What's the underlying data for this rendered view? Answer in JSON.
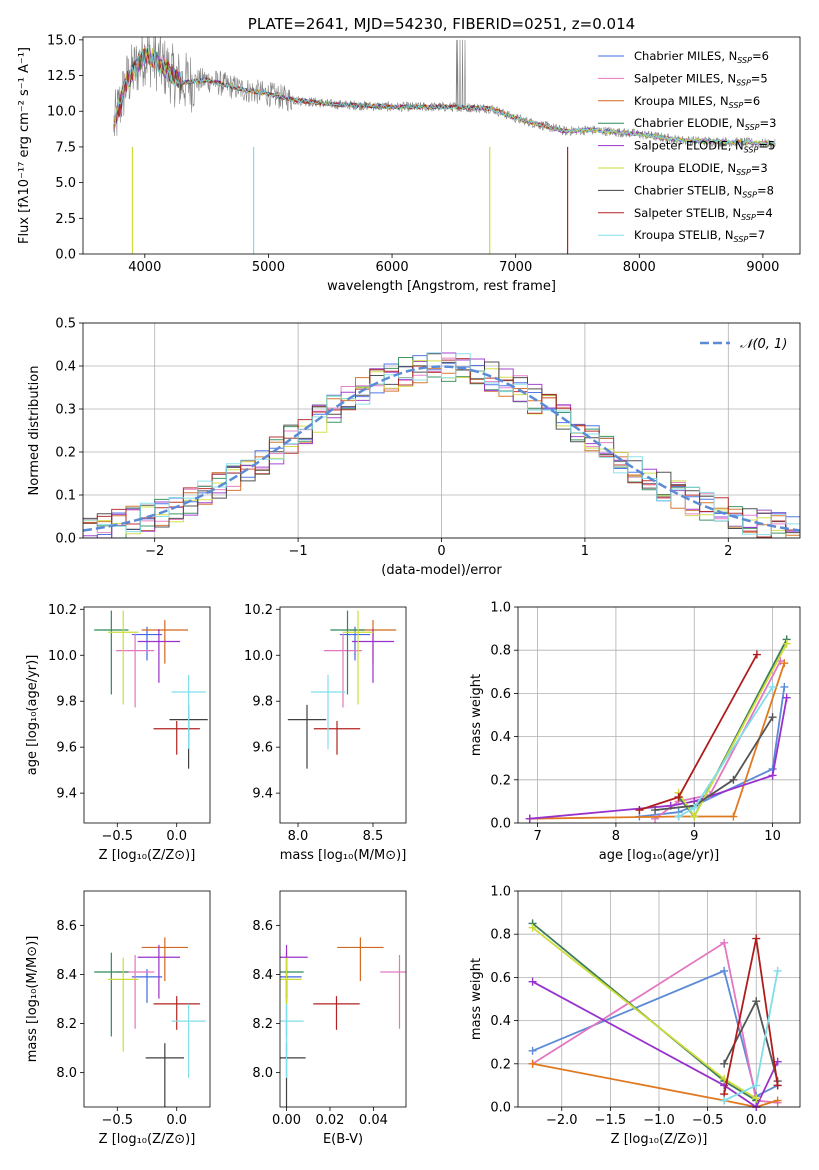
{
  "chart_data": [
    {
      "id": "spectrum",
      "type": "line",
      "title": "PLATE=2641, MJD=54230, FIBERID=0251, z=0.014",
      "xlabel": "wavelength [Angstrom, rest frame]",
      "ylabel": "Flux [fλ10⁻¹⁷ erg cm⁻² s⁻¹ A⁻¹]",
      "xlim": [
        3500,
        9300
      ],
      "ylim": [
        0,
        15.2
      ],
      "xticks": [
        4000,
        5000,
        6000,
        7000,
        8000,
        9000
      ],
      "yticks": [
        0.0,
        2.5,
        5.0,
        7.5,
        10.0,
        12.5,
        15.0
      ],
      "legend_position": "top-right",
      "legend": [
        {
          "label": "Chabrier MILES, N",
          "sub": "SSP",
          "tail": "=6",
          "color": "#4169e1"
        },
        {
          "label": "Salpeter MILES, N",
          "sub": "SSP",
          "tail": "=5",
          "color": "#e377c2"
        },
        {
          "label": "Kroupa MILES, N",
          "sub": "SSP",
          "tail": "=6",
          "color": "#d2691e"
        },
        {
          "label": "Chabrier ELODIE, N",
          "sub": "SSP",
          "tail": "=3",
          "color": "#2e8b57"
        },
        {
          "label": "Salpeter ELODIE, N",
          "sub": "SSP",
          "tail": "=5",
          "color": "#9932cc"
        },
        {
          "label": "Kroupa ELODIE, N",
          "sub": "SSP",
          "tail": "=3",
          "color": "#cddc39"
        },
        {
          "label": "Chabrier STELIB, N",
          "sub": "SSP",
          "tail": "=8",
          "color": "#404040"
        },
        {
          "label": "Salpeter STELIB, N",
          "sub": "SSP",
          "tail": "=4",
          "color": "#b22222"
        },
        {
          "label": "Kroupa STELIB, N",
          "sub": "SSP",
          "tail": "=7",
          "color": "#80deea"
        }
      ],
      "data_color": "#808080",
      "series_approx": [
        {
          "x": 3750,
          "y": 9.0
        },
        {
          "x": 3850,
          "y": 12.0
        },
        {
          "x": 4000,
          "y": 14.0
        },
        {
          "x": 4100,
          "y": 13.5
        },
        {
          "x": 4300,
          "y": 12.0
        },
        {
          "x": 4500,
          "y": 12.2
        },
        {
          "x": 4800,
          "y": 11.5
        },
        {
          "x": 5000,
          "y": 11.2
        },
        {
          "x": 5200,
          "y": 10.8
        },
        {
          "x": 5500,
          "y": 10.5
        },
        {
          "x": 6000,
          "y": 10.3
        },
        {
          "x": 6500,
          "y": 10.3
        },
        {
          "x": 6800,
          "y": 10.2
        },
        {
          "x": 7000,
          "y": 9.5
        },
        {
          "x": 7400,
          "y": 8.6
        },
        {
          "x": 7600,
          "y": 8.7
        },
        {
          "x": 8000,
          "y": 8.4
        },
        {
          "x": 8300,
          "y": 8.0
        },
        {
          "x": 8500,
          "y": 7.9
        },
        {
          "x": 8900,
          "y": 7.8
        },
        {
          "x": 9100,
          "y": 7.7
        }
      ]
    },
    {
      "id": "residual-hist",
      "type": "line",
      "xlabel": "(data-model)/error",
      "ylabel": "Normed distribution",
      "xlim": [
        -2.5,
        2.5
      ],
      "ylim": [
        0,
        0.5
      ],
      "xticks": [
        -2,
        -1,
        0,
        1,
        2
      ],
      "yticks": [
        0.0,
        0.1,
        0.2,
        0.3,
        0.4,
        0.5
      ],
      "grid": true,
      "legend_position": "top-right",
      "gaussian_label": "𝒩(0, 1)",
      "gaussian_color": "#5b8bd6"
    },
    {
      "id": "age-vs-Z",
      "type": "scatter",
      "xlabel": "Z [log₁₀(Z/Z⊙)]",
      "ylabel": "age  [log₁₀(age/yr)]",
      "xlim": [
        -0.78,
        0.28
      ],
      "ylim": [
        9.27,
        10.21
      ],
      "xticks": [
        -0.5,
        0.0
      ],
      "yticks": [
        9.4,
        9.6,
        9.8,
        10.0,
        10.2
      ],
      "points": [
        {
          "x": -0.25,
          "y": 10.09,
          "color": "#4169e1"
        },
        {
          "x": -0.35,
          "y": 10.02,
          "color": "#e377c2"
        },
        {
          "x": -0.1,
          "y": 10.11,
          "color": "#d2691e"
        },
        {
          "x": -0.55,
          "y": 10.11,
          "color": "#2e8b57"
        },
        {
          "x": -0.15,
          "y": 10.06,
          "color": "#9932cc"
        },
        {
          "x": -0.45,
          "y": 10.1,
          "color": "#cddc39"
        },
        {
          "x": 0.1,
          "y": 9.72,
          "color": "#404040"
        },
        {
          "x": 0.0,
          "y": 9.68,
          "color": "#b22222"
        },
        {
          "x": 0.1,
          "y": 9.84,
          "color": "#80deea"
        }
      ]
    },
    {
      "id": "age-vs-mass",
      "type": "scatter",
      "xlabel": "mass [log₁₀(M/M⊙)]",
      "ylabel": "",
      "xlim": [
        7.88,
        8.72
      ],
      "ylim": [
        9.27,
        10.21
      ],
      "xticks": [
        8.0,
        8.5
      ],
      "yticks": [
        9.4,
        9.6,
        9.8,
        10.0,
        10.2
      ],
      "points": [
        {
          "x": 8.38,
          "y": 10.09,
          "color": "#4169e1"
        },
        {
          "x": 8.3,
          "y": 10.02,
          "color": "#e377c2"
        },
        {
          "x": 8.5,
          "y": 10.11,
          "color": "#d2691e"
        },
        {
          "x": 8.33,
          "y": 10.11,
          "color": "#2e8b57"
        },
        {
          "x": 8.5,
          "y": 10.06,
          "color": "#9932cc"
        },
        {
          "x": 8.4,
          "y": 10.1,
          "color": "#cddc39"
        },
        {
          "x": 8.06,
          "y": 9.72,
          "color": "#404040"
        },
        {
          "x": 8.26,
          "y": 9.68,
          "color": "#b22222"
        },
        {
          "x": 8.2,
          "y": 9.84,
          "color": "#80deea"
        }
      ]
    },
    {
      "id": "mass-weight-vs-age",
      "type": "line",
      "xlabel": "age  [log₁₀(age/yr)]",
      "ylabel": "mass weight",
      "xlim": [
        6.75,
        10.35
      ],
      "ylim": [
        0,
        1.0
      ],
      "xticks": [
        7,
        8,
        9,
        10
      ],
      "yticks": [
        0.0,
        0.2,
        0.4,
        0.6,
        0.8,
        1.0
      ],
      "grid": true,
      "series": [
        {
          "name": "Chabrier MILES",
          "color": "#5b8bd6",
          "x": [
            8.3,
            8.8,
            9.0,
            10.0,
            10.15
          ],
          "y": [
            0.03,
            0.05,
            0.08,
            0.25,
            0.63
          ]
        },
        {
          "name": "Salpeter MILES",
          "color": "#e377c2",
          "x": [
            8.5,
            8.8,
            9.2,
            10.1
          ],
          "y": [
            0.02,
            0.1,
            0.13,
            0.75
          ]
        },
        {
          "name": "Kroupa MILES",
          "color": "#e07a20",
          "x": [
            6.9,
            8.8,
            9.5,
            10.15
          ],
          "y": [
            0.02,
            0.03,
            0.03,
            0.74
          ]
        },
        {
          "name": "Chabrier ELODIE",
          "color": "#3a7d5a",
          "x": [
            8.8,
            9.0,
            10.18
          ],
          "y": [
            0.12,
            0.03,
            0.85
          ]
        },
        {
          "name": "Salpeter ELODIE",
          "color": "#9932cc",
          "x": [
            6.9,
            8.7,
            9.0,
            10.0,
            10.18
          ],
          "y": [
            0.02,
            0.08,
            0.1,
            0.22,
            0.58
          ]
        },
        {
          "name": "Kroupa ELODIE",
          "color": "#cddc39",
          "x": [
            8.8,
            9.0,
            10.18
          ],
          "y": [
            0.14,
            0.03,
            0.83
          ]
        },
        {
          "name": "Chabrier STELIB",
          "color": "#555555",
          "x": [
            8.5,
            9.0,
            9.5,
            10.0
          ],
          "y": [
            0.06,
            0.08,
            0.2,
            0.49
          ]
        },
        {
          "name": "Salpeter STELIB",
          "color": "#b01c1c",
          "x": [
            8.3,
            8.8,
            9.8
          ],
          "y": [
            0.06,
            0.12,
            0.78
          ]
        },
        {
          "name": "Kroupa STELIB",
          "color": "#80deea",
          "x": [
            8.8,
            9.0,
            10.0
          ],
          "y": [
            0.03,
            0.07,
            0.63
          ]
        }
      ]
    },
    {
      "id": "mass-vs-Z",
      "type": "scatter",
      "xlabel": "Z [log₁₀(Z/Z⊙)]",
      "ylabel": "mass [log₁₀(M/M⊙)]",
      "xlim": [
        -0.78,
        0.28
      ],
      "ylim": [
        7.86,
        8.74
      ],
      "xticks": [
        -0.5,
        0.0
      ],
      "yticks": [
        8.0,
        8.2,
        8.4,
        8.6
      ],
      "points": [
        {
          "x": -0.25,
          "y": 8.39,
          "color": "#4169e1"
        },
        {
          "x": -0.35,
          "y": 8.41,
          "color": "#e377c2"
        },
        {
          "x": -0.1,
          "y": 8.51,
          "color": "#d2691e"
        },
        {
          "x": -0.55,
          "y": 8.41,
          "color": "#2e8b57"
        },
        {
          "x": -0.15,
          "y": 8.47,
          "color": "#9932cc"
        },
        {
          "x": -0.45,
          "y": 8.38,
          "color": "#cddc39"
        },
        {
          "x": -0.1,
          "y": 8.06,
          "color": "#404040"
        },
        {
          "x": 0.0,
          "y": 8.28,
          "color": "#b22222"
        },
        {
          "x": 0.1,
          "y": 8.21,
          "color": "#80deea"
        }
      ]
    },
    {
      "id": "mass-vs-ebv",
      "type": "scatter",
      "xlabel": "E(B-V)",
      "ylabel": "",
      "xlim": [
        -0.003,
        0.055
      ],
      "ylim": [
        7.86,
        8.74
      ],
      "xticks": [
        0.0,
        0.02,
        0.04
      ],
      "yticks": [
        8.0,
        8.2,
        8.4,
        8.6
      ],
      "points": [
        {
          "x": 0.0,
          "y": 8.39,
          "color": "#4169e1"
        },
        {
          "x": 0.052,
          "y": 8.41,
          "color": "#e377c2"
        },
        {
          "x": 0.034,
          "y": 8.51,
          "color": "#d2691e"
        },
        {
          "x": 0.0,
          "y": 8.41,
          "color": "#2e8b57"
        },
        {
          "x": 0.0,
          "y": 8.47,
          "color": "#9932cc"
        },
        {
          "x": 0.0,
          "y": 8.38,
          "color": "#cddc39"
        },
        {
          "x": 0.0,
          "y": 8.06,
          "color": "#404040"
        },
        {
          "x": 0.023,
          "y": 8.28,
          "color": "#b22222"
        },
        {
          "x": 0.0,
          "y": 8.21,
          "color": "#80deea"
        }
      ]
    },
    {
      "id": "mass-weight-vs-Z",
      "type": "line",
      "xlabel": "Z [log₁₀(Z/Z⊙)]",
      "ylabel": "mass weight",
      "xlim": [
        -2.45,
        0.45
      ],
      "ylim": [
        0,
        1.0
      ],
      "xticks": [
        -2.0,
        -1.5,
        -1.0,
        -0.5,
        0.0
      ],
      "yticks": [
        0.0,
        0.2,
        0.4,
        0.6,
        0.8,
        1.0
      ],
      "grid": true,
      "series": [
        {
          "name": "Chabrier MILES",
          "color": "#5b8bd6",
          "x": [
            -2.3,
            -0.33,
            0.0,
            0.22
          ],
          "y": [
            0.26,
            0.63,
            0.05,
            0.1
          ]
        },
        {
          "name": "Salpeter MILES",
          "color": "#e377c2",
          "x": [
            -2.3,
            -0.33,
            0.0,
            0.22
          ],
          "y": [
            0.2,
            0.76,
            0.03,
            0.02
          ]
        },
        {
          "name": "Kroupa MILES",
          "color": "#e07a20",
          "x": [
            -2.3,
            -0.33,
            0.0,
            0.22
          ],
          "y": [
            0.2,
            0.03,
            0.0,
            0.03
          ]
        },
        {
          "name": "Chabrier ELODIE",
          "color": "#3a7d5a",
          "x": [
            -2.3,
            -0.33,
            0.0
          ],
          "y": [
            0.85,
            0.12,
            0.03
          ]
        },
        {
          "name": "Salpeter ELODIE",
          "color": "#9932cc",
          "x": [
            -2.3,
            -0.33,
            0.0,
            0.22
          ],
          "y": [
            0.58,
            0.1,
            0.0,
            0.21
          ]
        },
        {
          "name": "Kroupa ELODIE",
          "color": "#cddc39",
          "x": [
            -2.3,
            -0.33,
            0.0
          ],
          "y": [
            0.83,
            0.13,
            0.04
          ]
        },
        {
          "name": "Chabrier STELIB",
          "color": "#555555",
          "x": [
            -0.33,
            0.0,
            0.22
          ],
          "y": [
            0.2,
            0.49,
            0.12
          ]
        },
        {
          "name": "Salpeter STELIB",
          "color": "#b01c1c",
          "x": [
            -0.33,
            0.0,
            0.22
          ],
          "y": [
            0.06,
            0.78,
            0.1
          ]
        },
        {
          "name": "Kroupa STELIB",
          "color": "#80deea",
          "x": [
            -0.33,
            0.0,
            0.22
          ],
          "y": [
            0.03,
            0.1,
            0.63
          ]
        }
      ]
    }
  ]
}
